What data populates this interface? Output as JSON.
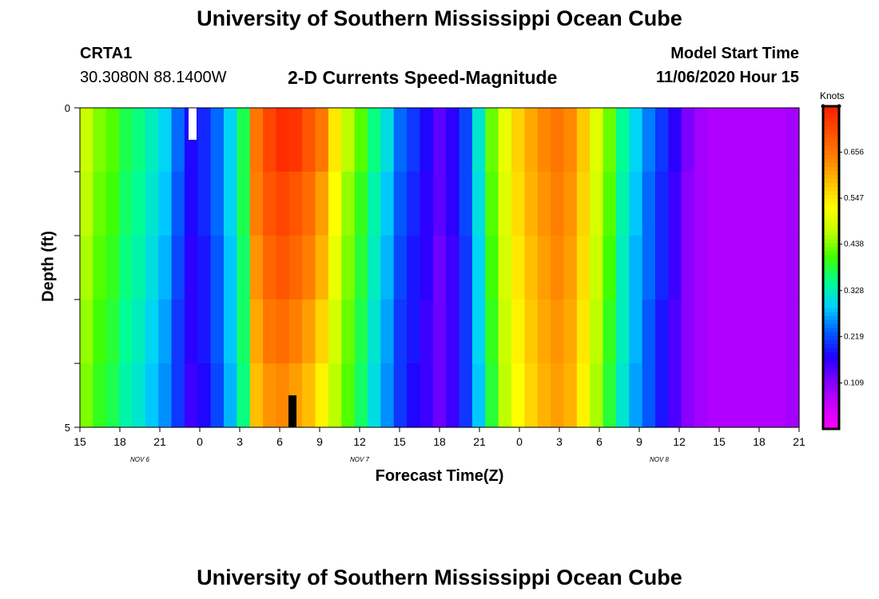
{
  "header": {
    "title": "University of Southern Mississippi Ocean Cube",
    "station": "CRTA1",
    "coords": "30.3080N 88.1400W",
    "product": "2-D Currents Speed-Magnitude",
    "model_start_label": "Model Start Time",
    "model_start_value": "11/06/2020 Hour 15"
  },
  "footer": {
    "title": "University of Southern Mississippi Ocean Cube"
  },
  "colors": {
    "scale": [
      "#ff00ff",
      "#cc00ff",
      "#8000ff",
      "#2000ff",
      "#0060ff",
      "#00d0ff",
      "#00ff90",
      "#40ff00",
      "#c0ff00",
      "#ffff00",
      "#ffc000",
      "#ff8000",
      "#ff5000",
      "#ff2000"
    ]
  },
  "chart_data": {
    "type": "heatmap",
    "title": "2-D Currents Speed-Magnitude",
    "xlabel": "Forecast Time(Z)",
    "ylabel": "Depth (ft)",
    "x_tick_labels": [
      "15",
      "18",
      "21",
      "0",
      "3",
      "6",
      "9",
      "12",
      "15",
      "18",
      "21",
      "0",
      "3",
      "6",
      "9",
      "12",
      "15",
      "18",
      "21"
    ],
    "date_labels": [
      {
        "text": "NOV 6",
        "at_tick": 1.5
      },
      {
        "text": "NOV 7",
        "at_tick": 7
      },
      {
        "text": "NOV 8",
        "at_tick": 14.5
      }
    ],
    "y_tick_labels": [
      {
        "text": "0",
        "depth": 0
      },
      {
        "text": "5",
        "depth": 5
      }
    ],
    "y_range_ft": [
      0,
      5
    ],
    "hours": 55,
    "depth_levels": 5,
    "colorbar": {
      "title": "Knots",
      "range": [
        0,
        0.765
      ],
      "tick_labels": [
        "0.656",
        "0.547",
        "0.438",
        "0.328",
        "0.219",
        "0.109"
      ],
      "tick_values": [
        0.656,
        0.547,
        0.438,
        0.328,
        0.219,
        0.109
      ]
    },
    "surface_speed_knots": [
      0.48,
      0.44,
      0.42,
      0.38,
      0.36,
      0.33,
      0.3,
      0.24,
      0.18,
      0.2,
      0.24,
      0.3,
      0.38,
      0.66,
      0.72,
      0.75,
      0.74,
      0.7,
      0.66,
      0.55,
      0.47,
      0.42,
      0.36,
      0.31,
      0.24,
      0.21,
      0.18,
      0.14,
      0.17,
      0.22,
      0.32,
      0.43,
      0.51,
      0.57,
      0.61,
      0.64,
      0.66,
      0.64,
      0.58,
      0.5,
      0.43,
      0.35,
      0.3,
      0.25,
      0.21,
      0.17,
      0.12,
      0.09,
      0.08,
      0.08,
      0.08,
      0.08,
      0.08,
      0.08,
      0.09
    ],
    "speed_knots_by_depth": [
      [
        0.48,
        0.44,
        0.42,
        0.38,
        0.36,
        0.33,
        0.3,
        0.24,
        0.18,
        0.2,
        0.24,
        0.3,
        0.38,
        0.66,
        0.72,
        0.75,
        0.74,
        0.7,
        0.66,
        0.55,
        0.47,
        0.42,
        0.36,
        0.31,
        0.24,
        0.21,
        0.18,
        0.14,
        0.17,
        0.22,
        0.32,
        0.43,
        0.51,
        0.57,
        0.61,
        0.64,
        0.66,
        0.64,
        0.58,
        0.5,
        0.43,
        0.35,
        0.3,
        0.25,
        0.21,
        0.17,
        0.12,
        0.09,
        0.08,
        0.08,
        0.08,
        0.08,
        0.08,
        0.08,
        0.09
      ],
      [
        0.47,
        0.43,
        0.41,
        0.37,
        0.35,
        0.32,
        0.29,
        0.23,
        0.18,
        0.2,
        0.24,
        0.3,
        0.38,
        0.65,
        0.7,
        0.72,
        0.7,
        0.67,
        0.62,
        0.53,
        0.45,
        0.4,
        0.34,
        0.29,
        0.23,
        0.2,
        0.17,
        0.14,
        0.17,
        0.22,
        0.31,
        0.42,
        0.5,
        0.56,
        0.6,
        0.63,
        0.65,
        0.63,
        0.57,
        0.49,
        0.42,
        0.34,
        0.29,
        0.24,
        0.2,
        0.16,
        0.11,
        0.09,
        0.08,
        0.08,
        0.08,
        0.08,
        0.08,
        0.08,
        0.09
      ],
      [
        0.46,
        0.42,
        0.4,
        0.36,
        0.34,
        0.31,
        0.28,
        0.22,
        0.17,
        0.19,
        0.23,
        0.29,
        0.37,
        0.63,
        0.68,
        0.7,
        0.68,
        0.65,
        0.6,
        0.51,
        0.44,
        0.39,
        0.33,
        0.28,
        0.22,
        0.19,
        0.17,
        0.13,
        0.16,
        0.21,
        0.3,
        0.41,
        0.49,
        0.55,
        0.59,
        0.62,
        0.64,
        0.62,
        0.56,
        0.48,
        0.41,
        0.33,
        0.28,
        0.24,
        0.2,
        0.16,
        0.11,
        0.09,
        0.08,
        0.08,
        0.08,
        0.08,
        0.08,
        0.08,
        0.09
      ],
      [
        0.45,
        0.41,
        0.39,
        0.35,
        0.33,
        0.3,
        0.27,
        0.21,
        0.17,
        0.19,
        0.23,
        0.29,
        0.37,
        0.61,
        0.66,
        0.67,
        0.65,
        0.62,
        0.57,
        0.49,
        0.43,
        0.38,
        0.32,
        0.27,
        0.21,
        0.19,
        0.16,
        0.13,
        0.16,
        0.21,
        0.3,
        0.4,
        0.48,
        0.54,
        0.58,
        0.61,
        0.63,
        0.61,
        0.55,
        0.47,
        0.4,
        0.33,
        0.28,
        0.23,
        0.19,
        0.15,
        0.11,
        0.09,
        0.08,
        0.08,
        0.08,
        0.08,
        0.08,
        0.08,
        0.09
      ],
      [
        0.44,
        0.4,
        0.38,
        0.34,
        0.32,
        0.29,
        0.26,
        0.21,
        0.16,
        0.18,
        0.22,
        0.28,
        0.36,
        0.59,
        0.63,
        0.64,
        0.62,
        0.59,
        0.54,
        0.47,
        0.42,
        0.37,
        0.31,
        0.26,
        0.21,
        0.18,
        0.16,
        0.13,
        0.16,
        0.21,
        0.29,
        0.39,
        0.47,
        0.53,
        0.57,
        0.6,
        0.62,
        0.6,
        0.54,
        0.46,
        0.39,
        0.32,
        0.27,
        0.23,
        0.19,
        0.15,
        0.11,
        0.09,
        0.08,
        0.08,
        0.08,
        0.08,
        0.08,
        0.08,
        0.09
      ]
    ]
  }
}
